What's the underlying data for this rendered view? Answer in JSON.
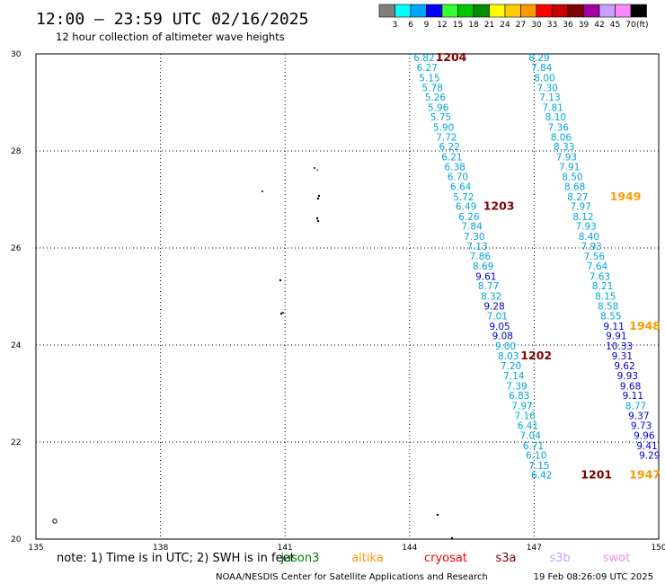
{
  "chart_data": {
    "type": "scatter",
    "title": "12:00 – 23:59 UTC 02/16/2025",
    "subtitle": "12 hour collection of altimeter wave heights",
    "xlim": [
      135,
      150
    ],
    "ylim": [
      20,
      30
    ],
    "x_ticks": [
      "135",
      "138",
      "141",
      "144",
      "147",
      "150"
    ],
    "y_ticks": [
      "20",
      "22",
      "24",
      "26",
      "28",
      "30"
    ],
    "grid": true,
    "color_scale": {
      "unit_label": "(ft)",
      "labels": [
        "3",
        "6",
        "9",
        "12",
        "15",
        "18",
        "21",
        "24",
        "27",
        "30",
        "33",
        "36",
        "39",
        "42",
        "45",
        "70"
      ],
      "colors": [
        "#7f7f7f",
        "#00ffff",
        "#00a6ff",
        "#0000ff",
        "#33ff33",
        "#00c800",
        "#008c00",
        "#ffff00",
        "#ffcc00",
        "#ff9900",
        "#ff0000",
        "#c80000",
        "#800000",
        "#a000a0",
        "#c8a0ff",
        "#ff88ff",
        "#000000"
      ]
    },
    "series": [
      {
        "track": "west",
        "points": [
          {
            "x": 144.35,
            "y": 29.93,
            "label": "6.82",
            "color": "#00a6d8"
          },
          {
            "x": 144.42,
            "y": 29.72,
            "label": "6.27",
            "color": "#00a6d8"
          },
          {
            "x": 144.48,
            "y": 29.51,
            "label": "5.15",
            "color": "#00a6d8"
          },
          {
            "x": 144.55,
            "y": 29.31,
            "label": "5.78",
            "color": "#00a6d8"
          },
          {
            "x": 144.62,
            "y": 29.11,
            "label": "5.26",
            "color": "#00a6d8"
          },
          {
            "x": 144.69,
            "y": 28.9,
            "label": "5.96",
            "color": "#00a6d8"
          },
          {
            "x": 144.75,
            "y": 28.7,
            "label": "5.75",
            "color": "#00a6d8"
          },
          {
            "x": 144.82,
            "y": 28.49,
            "label": "5.90",
            "color": "#00a6d8"
          },
          {
            "x": 144.89,
            "y": 28.29,
            "label": "7.72",
            "color": "#00a6d8"
          },
          {
            "x": 144.96,
            "y": 28.09,
            "label": "6.22",
            "color": "#00a6d8"
          },
          {
            "x": 145.02,
            "y": 27.88,
            "label": "6.21",
            "color": "#00a6d8"
          },
          {
            "x": 145.09,
            "y": 27.68,
            "label": "6.38",
            "color": "#00a6d8"
          },
          {
            "x": 145.16,
            "y": 27.47,
            "label": "6.70",
            "color": "#00a6d8"
          },
          {
            "x": 145.23,
            "y": 27.27,
            "label": "6.64",
            "color": "#00a6d8"
          },
          {
            "x": 145.3,
            "y": 27.06,
            "label": "5.72",
            "color": "#00a6d8"
          },
          {
            "x": 145.36,
            "y": 26.86,
            "label": "6.49",
            "color": "#00a6d8"
          },
          {
            "x": 145.43,
            "y": 26.65,
            "label": "6.26",
            "color": "#00a6d8"
          },
          {
            "x": 145.5,
            "y": 26.45,
            "label": "7.84",
            "color": "#00a6d8"
          },
          {
            "x": 145.56,
            "y": 26.24,
            "label": "7.30",
            "color": "#00a6d8"
          },
          {
            "x": 145.63,
            "y": 26.04,
            "label": "7.13",
            "color": "#00a6d8"
          },
          {
            "x": 145.7,
            "y": 25.83,
            "label": "7.86",
            "color": "#00a6d8"
          },
          {
            "x": 145.77,
            "y": 25.63,
            "label": "8.69",
            "color": "#00a6d8"
          },
          {
            "x": 145.84,
            "y": 25.42,
            "label": "9.61",
            "color": "#0000cc"
          },
          {
            "x": 145.9,
            "y": 25.22,
            "label": "8.77",
            "color": "#00a6d8"
          },
          {
            "x": 145.97,
            "y": 25.01,
            "label": "8.32",
            "color": "#00a6d8"
          },
          {
            "x": 146.04,
            "y": 24.81,
            "label": "9.28",
            "color": "#0000cc"
          },
          {
            "x": 146.11,
            "y": 24.6,
            "label": "7.01",
            "color": "#00a6d8"
          },
          {
            "x": 146.17,
            "y": 24.39,
            "label": "9.05",
            "color": "#0000cc"
          },
          {
            "x": 146.24,
            "y": 24.19,
            "label": "9.08",
            "color": "#0000cc"
          },
          {
            "x": 146.31,
            "y": 23.98,
            "label": "9.00",
            "color": "#00a6d8"
          },
          {
            "x": 146.38,
            "y": 23.78,
            "label": "8.03",
            "color": "#00a6d8"
          },
          {
            "x": 146.44,
            "y": 23.57,
            "label": "7.20",
            "color": "#00a6d8"
          },
          {
            "x": 146.51,
            "y": 23.37,
            "label": "7.14",
            "color": "#00a6d8"
          },
          {
            "x": 146.58,
            "y": 23.16,
            "label": "7.39",
            "color": "#00a6d8"
          },
          {
            "x": 146.64,
            "y": 22.96,
            "label": "6.83",
            "color": "#00a6d8"
          },
          {
            "x": 146.71,
            "y": 22.75,
            "label": "7.97",
            "color": "#00a6d8"
          },
          {
            "x": 146.78,
            "y": 22.55,
            "label": "7.16",
            "color": "#00a6d8"
          },
          {
            "x": 146.85,
            "y": 22.34,
            "label": "6.41",
            "color": "#00a6d8"
          },
          {
            "x": 146.91,
            "y": 22.14,
            "label": "7.04",
            "color": "#00a6d8"
          },
          {
            "x": 146.98,
            "y": 21.93,
            "label": "6.71",
            "color": "#00a6d8"
          },
          {
            "x": 147.05,
            "y": 21.73,
            "label": "6.10",
            "color": "#00a6d8"
          },
          {
            "x": 147.12,
            "y": 21.52,
            "label": "7.15",
            "color": "#00a6d8"
          },
          {
            "x": 147.18,
            "y": 21.32,
            "label": "6.42",
            "color": "#00a6d8"
          }
        ]
      },
      {
        "track": "east",
        "points": [
          {
            "x": 147.12,
            "y": 29.93,
            "label": "8.29",
            "color": "#00a6d8"
          },
          {
            "x": 147.18,
            "y": 29.72,
            "label": "7.84",
            "color": "#00a6d8"
          },
          {
            "x": 147.25,
            "y": 29.51,
            "label": "8.00",
            "color": "#00a6d8"
          },
          {
            "x": 147.32,
            "y": 29.31,
            "label": "7.30",
            "color": "#00a6d8"
          },
          {
            "x": 147.38,
            "y": 29.11,
            "label": "7.13",
            "color": "#00a6d8"
          },
          {
            "x": 147.45,
            "y": 28.9,
            "label": "7.81",
            "color": "#00a6d8"
          },
          {
            "x": 147.52,
            "y": 28.7,
            "label": "8.10",
            "color": "#00a6d8"
          },
          {
            "x": 147.58,
            "y": 28.49,
            "label": "7.36",
            "color": "#00a6d8"
          },
          {
            "x": 147.65,
            "y": 28.29,
            "label": "8.06",
            "color": "#00a6d8"
          },
          {
            "x": 147.72,
            "y": 28.09,
            "label": "8.33",
            "color": "#00a6d8"
          },
          {
            "x": 147.78,
            "y": 27.88,
            "label": "7.93",
            "color": "#00a6d8"
          },
          {
            "x": 147.85,
            "y": 27.68,
            "label": "7.91",
            "color": "#00a6d8"
          },
          {
            "x": 147.92,
            "y": 27.47,
            "label": "8.50",
            "color": "#00a6d8"
          },
          {
            "x": 147.98,
            "y": 27.27,
            "label": "8.68",
            "color": "#00a6d8"
          },
          {
            "x": 148.05,
            "y": 27.06,
            "label": "8.27",
            "color": "#00a6d8"
          },
          {
            "x": 148.12,
            "y": 26.86,
            "label": "7.97",
            "color": "#00a6d8"
          },
          {
            "x": 148.18,
            "y": 26.65,
            "label": "8.12",
            "color": "#00a6d8"
          },
          {
            "x": 148.25,
            "y": 26.45,
            "label": "7.93",
            "color": "#00a6d8"
          },
          {
            "x": 148.32,
            "y": 26.24,
            "label": "8.40",
            "color": "#00a6d8"
          },
          {
            "x": 148.38,
            "y": 26.04,
            "label": "7.93",
            "color": "#00a6d8"
          },
          {
            "x": 148.45,
            "y": 25.83,
            "label": "7.56",
            "color": "#00a6d8"
          },
          {
            "x": 148.52,
            "y": 25.63,
            "label": "7.64",
            "color": "#00a6d8"
          },
          {
            "x": 148.58,
            "y": 25.42,
            "label": "7.63",
            "color": "#00a6d8"
          },
          {
            "x": 148.65,
            "y": 25.22,
            "label": "8.21",
            "color": "#00a6d8"
          },
          {
            "x": 148.72,
            "y": 25.01,
            "label": "8.15",
            "color": "#00a6d8"
          },
          {
            "x": 148.78,
            "y": 24.81,
            "label": "8.58",
            "color": "#00a6d8"
          },
          {
            "x": 148.85,
            "y": 24.6,
            "label": "8.55",
            "color": "#00a6d8"
          },
          {
            "x": 148.92,
            "y": 24.39,
            "label": "9.11",
            "color": "#0000cc"
          },
          {
            "x": 148.98,
            "y": 24.19,
            "label": "9.91",
            "color": "#0000cc"
          },
          {
            "x": 149.05,
            "y": 23.98,
            "label": "10.33",
            "color": "#0000cc"
          },
          {
            "x": 149.12,
            "y": 23.78,
            "label": "9.31",
            "color": "#0000cc"
          },
          {
            "x": 149.18,
            "y": 23.57,
            "label": "9.62",
            "color": "#0000cc"
          },
          {
            "x": 149.25,
            "y": 23.37,
            "label": "9.93",
            "color": "#0000cc"
          },
          {
            "x": 149.32,
            "y": 23.16,
            "label": "9.68",
            "color": "#0000cc"
          },
          {
            "x": 149.38,
            "y": 22.96,
            "label": "9.11",
            "color": "#0000cc"
          },
          {
            "x": 149.45,
            "y": 22.75,
            "label": "8.77",
            "color": "#00a6d8"
          },
          {
            "x": 149.52,
            "y": 22.55,
            "label": "9.37",
            "color": "#0000cc"
          },
          {
            "x": 149.58,
            "y": 22.34,
            "label": "9.73",
            "color": "#0000cc"
          },
          {
            "x": 149.65,
            "y": 22.14,
            "label": "9.96",
            "color": "#0000cc"
          },
          {
            "x": 149.72,
            "y": 21.93,
            "label": "9.41",
            "color": "#0000cc"
          },
          {
            "x": 149.78,
            "y": 21.73,
            "label": "9.29",
            "color": "#0000cc"
          }
        ]
      }
    ],
    "annotations": [
      {
        "text": "1204",
        "x": 145.0,
        "y": 29.93,
        "color": "#800000"
      },
      {
        "text": "1203",
        "x": 146.15,
        "y": 26.86,
        "color": "#800000"
      },
      {
        "text": "1202",
        "x": 147.05,
        "y": 23.78,
        "color": "#800000"
      },
      {
        "text": "1201",
        "x": 148.5,
        "y": 21.32,
        "color": "#800000"
      },
      {
        "text": "1949",
        "x": 149.2,
        "y": 27.06,
        "color": "#ff9900"
      },
      {
        "text": "1948",
        "x": 150.1,
        "y": 24.39,
        "color": "#ff9900"
      },
      {
        "text": "1947",
        "x": 150.5,
        "y": 21.32,
        "color": "#ff9900"
      }
    ]
  },
  "footer": {
    "note": "note: 1) Time is in UTC; 2) SWH is in feet",
    "legend": [
      {
        "name": "jason3",
        "color": "#008000"
      },
      {
        "name": "altika",
        "color": "#ff9900"
      },
      {
        "name": "cryosat",
        "color": "#ff0000"
      },
      {
        "name": "s3a",
        "color": "#800000"
      },
      {
        "name": "s3b",
        "color": "#c8a0ff"
      },
      {
        "name": "swot",
        "color": "#ff88ff"
      }
    ],
    "credit": "NOAA/NESDIS Center for Satellite Applications and Research",
    "timestamp": "19 Feb 08:26:09 UTC 2025"
  }
}
